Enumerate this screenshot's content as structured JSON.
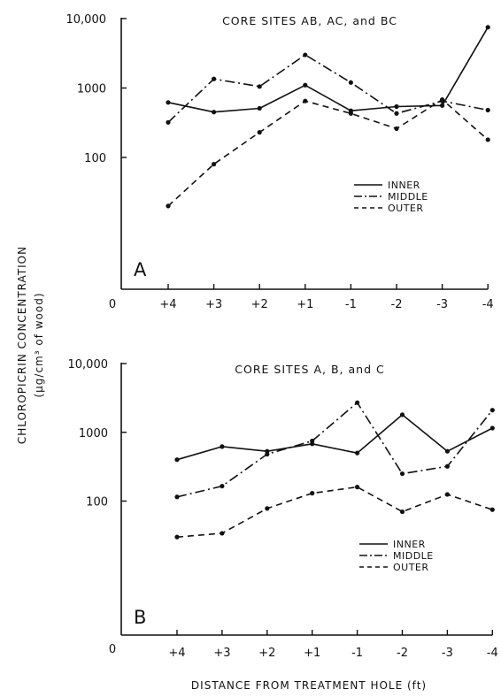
{
  "chart_data": [
    {
      "type": "line",
      "panel_letter": "A",
      "title": "CORE SITES AB, AC, and BC",
      "categories": [
        "+4",
        "+3",
        "+2",
        "+1",
        "-1",
        "-2",
        "-3",
        "-4"
      ],
      "y_scale": "log",
      "ylim": [
        1,
        10000
      ],
      "yticks": [
        {
          "value": 100,
          "label": "100"
        },
        {
          "value": 1000,
          "label": "1000"
        },
        {
          "value": 10000,
          "label": "10,000"
        }
      ],
      "origin_label": "0",
      "legend_position": "right",
      "series": [
        {
          "name": "INNER",
          "dash": "solid",
          "values": [
            620,
            450,
            510,
            1100,
            470,
            540,
            560,
            7500
          ]
        },
        {
          "name": "MIDDLE",
          "dash": "dashdot",
          "values": [
            320,
            1350,
            1050,
            3000,
            1200,
            430,
            650,
            480
          ]
        },
        {
          "name": "OUTER",
          "dash": "dashed",
          "values": [
            20,
            80,
            230,
            650,
            430,
            260,
            680,
            180
          ]
        }
      ]
    },
    {
      "type": "line",
      "panel_letter": "B",
      "title": "CORE SITES  A, B, and C",
      "categories": [
        "+4",
        "+3",
        "+2",
        "+1",
        "-1",
        "-2",
        "-3",
        "-4"
      ],
      "y_scale": "log",
      "ylim": [
        1,
        10000
      ],
      "yticks": [
        {
          "value": 100,
          "label": "100"
        },
        {
          "value": 1000,
          "label": "1000"
        },
        {
          "value": 10000,
          "label": "10,000"
        }
      ],
      "origin_label": "0",
      "legend_position": "right",
      "series": [
        {
          "name": "INNER",
          "dash": "solid",
          "values": [
            400,
            620,
            530,
            680,
            500,
            1800,
            530,
            1150
          ]
        },
        {
          "name": "MIDDLE",
          "dash": "dashdot",
          "values": [
            115,
            165,
            480,
            750,
            2700,
            250,
            320,
            2100
          ]
        },
        {
          "name": "OUTER",
          "dash": "dashed",
          "values": [
            30,
            34,
            78,
            130,
            160,
            70,
            125,
            75
          ]
        }
      ]
    }
  ],
  "ylabel": "CHLOROPICRIN CONCENTRATION (μg/cm³ of wood)",
  "ylabel_line1": "CHLOROPICRIN CONCENTRATION",
  "ylabel_line2": "(μg/cm³ of wood)",
  "xlabel": "DISTANCE FROM TREATMENT HOLE (ft)",
  "colors": {
    "ink": "#111111",
    "background": "#ffffff"
  }
}
